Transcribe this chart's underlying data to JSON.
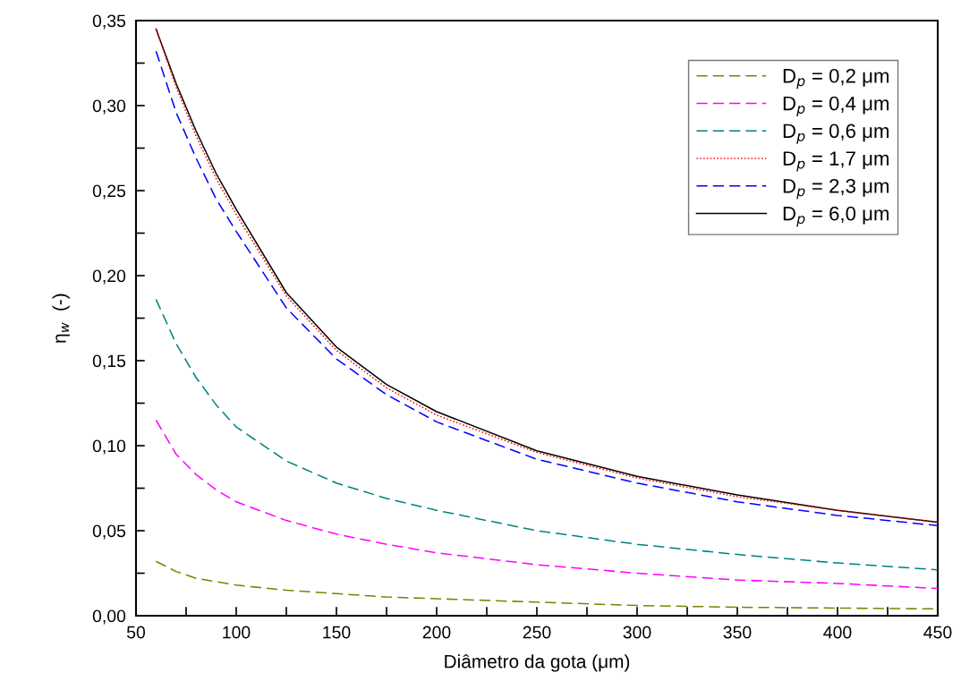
{
  "chart_data": {
    "type": "line",
    "xlabel": "Diâmetro da gota (μm)",
    "ylabel": "η$_{w}$  (-)",
    "x": [
      60,
      70,
      80,
      90,
      100,
      125,
      150,
      175,
      200,
      250,
      300,
      350,
      400,
      450
    ],
    "series": [
      {
        "name": "D$_{p}$ = 0,2 μm",
        "color": "#808000",
        "line_style": "dashed",
        "values": [
          0.032,
          0.026,
          0.022,
          0.02,
          0.018,
          0.015,
          0.013,
          0.011,
          0.01,
          0.008,
          0.006,
          0.005,
          0.0045,
          0.004
        ]
      },
      {
        "name": "D$_{p}$ = 0,4 μm",
        "color": "#ff00ff",
        "line_style": "dashed",
        "values": [
          0.115,
          0.095,
          0.083,
          0.074,
          0.067,
          0.056,
          0.048,
          0.042,
          0.037,
          0.03,
          0.025,
          0.021,
          0.019,
          0.016
        ]
      },
      {
        "name": "D$_{p}$ = 0,6 μm",
        "color": "#008080",
        "line_style": "dashed",
        "values": [
          0.186,
          0.16,
          0.14,
          0.124,
          0.111,
          0.091,
          0.078,
          0.069,
          0.062,
          0.05,
          0.042,
          0.036,
          0.031,
          0.027
        ]
      },
      {
        "name": "D$_{p}$ = 1,7 μm",
        "color": "#ff0000",
        "line_style": "dotted",
        "values": [
          0.345,
          0.311,
          0.282,
          0.257,
          0.236,
          0.188,
          0.156,
          0.134,
          0.118,
          0.096,
          0.081,
          0.07,
          0.062,
          0.055
        ]
      },
      {
        "name": "D$_{p}$ = 2,3 μm",
        "color": "#0000ff",
        "line_style": "dashed",
        "values": [
          0.332,
          0.296,
          0.269,
          0.245,
          0.226,
          0.181,
          0.151,
          0.13,
          0.114,
          0.092,
          0.078,
          0.067,
          0.059,
          0.053
        ]
      },
      {
        "name": "D$_{p}$ = 6,0 μm",
        "color": "#000000",
        "line_style": "solid",
        "values": [
          0.345,
          0.313,
          0.285,
          0.26,
          0.239,
          0.19,
          0.158,
          0.136,
          0.12,
          0.097,
          0.082,
          0.071,
          0.062,
          0.055
        ]
      }
    ],
    "xlim": [
      50,
      450
    ],
    "xticks": [
      50,
      {
        "value": 75,
        "label": null
      },
      100,
      {
        "value": 125,
        "label": null
      },
      150,
      {
        "value": 175,
        "label": null
      },
      200,
      {
        "value": 225,
        "label": null
      },
      250,
      {
        "value": 275,
        "label": null
      },
      300,
      {
        "value": 325,
        "label": null
      },
      350,
      {
        "value": 375,
        "label": null
      },
      400,
      {
        "value": 425,
        "label": null
      },
      450
    ],
    "ylim": [
      0,
      0.35
    ],
    "yticks": [
      {
        "value": 0,
        "label": "0,00"
      },
      {
        "value": 0.025,
        "label": null
      },
      {
        "value": 0.05,
        "label": "0,05"
      },
      {
        "value": 0.075,
        "label": null
      },
      {
        "value": 0.1,
        "label": "0,10"
      },
      {
        "value": 0.125,
        "label": null
      },
      {
        "value": 0.15,
        "label": "0,15"
      },
      {
        "value": 0.175,
        "label": null
      },
      {
        "value": 0.2,
        "label": "0,20"
      },
      {
        "value": 0.225,
        "label": null
      },
      {
        "value": 0.25,
        "label": "0,25"
      },
      {
        "value": 0.275,
        "label": null
      },
      {
        "value": 0.3,
        "label": "0,30"
      },
      {
        "value": 0.325,
        "label": null
      },
      {
        "value": 0.35,
        "label": "0,35"
      }
    ],
    "legend": "top right",
    "grid": false
  }
}
